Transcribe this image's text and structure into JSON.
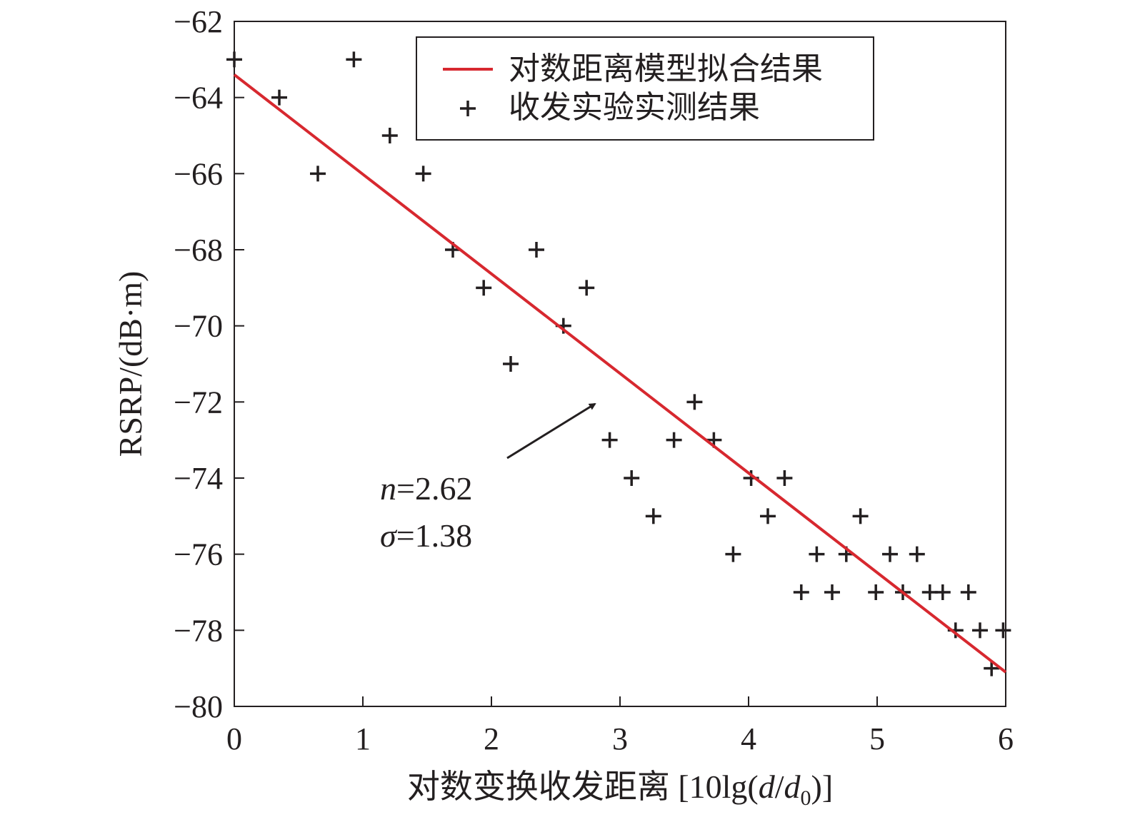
{
  "chart_data": {
    "type": "scatter",
    "xlabel_prefix": "对数变换收发距离 [10lg(",
    "xlabel_d": "d",
    "xlabel_slash": "/",
    "xlabel_d0": "d",
    "xlabel_sub0": "0",
    "xlabel_suffix": ")]",
    "ylabel": "RSRP/(dB·m)",
    "xlim": [
      0,
      6
    ],
    "ylim": [
      -80,
      -62
    ],
    "x_ticks": [
      0,
      1,
      2,
      3,
      4,
      5,
      6
    ],
    "x_tick_labels": [
      "0",
      "1",
      "2",
      "3",
      "4",
      "5",
      "6"
    ],
    "y_ticks": [
      -62,
      -64,
      -66,
      -68,
      -70,
      -72,
      -74,
      -76,
      -78,
      -80
    ],
    "y_tick_labels": [
      "−62",
      "−64",
      "−66",
      "−68",
      "−70",
      "−72",
      "−74",
      "−76",
      "−78",
      "−80"
    ],
    "grid": false,
    "legend_position": "top-right",
    "series": [
      {
        "name": "对数距离模型拟合结果",
        "kind": "line",
        "color": "#d7282f",
        "x": [
          0,
          6
        ],
        "y": [
          -63.4,
          -79.1
        ]
      },
      {
        "name": "收发实验实测结果",
        "kind": "scatter",
        "marker": "plus",
        "color": "#231f20",
        "x": [
          0,
          0.35,
          0.65,
          0.93,
          1.21,
          1.47,
          1.7,
          1.94,
          2.15,
          2.35,
          2.56,
          2.74,
          2.92,
          3.09,
          3.26,
          3.42,
          3.58,
          3.73,
          3.88,
          4.02,
          4.15,
          4.28,
          4.41,
          4.53,
          4.65,
          4.76,
          4.87,
          4.99,
          5.1,
          5.2,
          5.31,
          5.41,
          5.51,
          5.61,
          5.71,
          5.8,
          5.89,
          5.98
        ],
        "y": [
          -63,
          -64,
          -66,
          -63,
          -65,
          -66,
          -68,
          -69,
          -71,
          -68,
          -70,
          -69,
          -73,
          -74,
          -75,
          -73,
          -72,
          -73,
          -76,
          -74,
          -75,
          -74,
          -77,
          -76,
          -77,
          -76,
          -75,
          -77,
          -76,
          -77,
          -76,
          -77,
          -77,
          -78,
          -77,
          -78,
          -79,
          -78
        ]
      }
    ],
    "annotation": {
      "n_symbol": "n",
      "n_value": "=2.62",
      "sigma_symbol": "σ",
      "sigma_value": "=1.38"
    }
  }
}
